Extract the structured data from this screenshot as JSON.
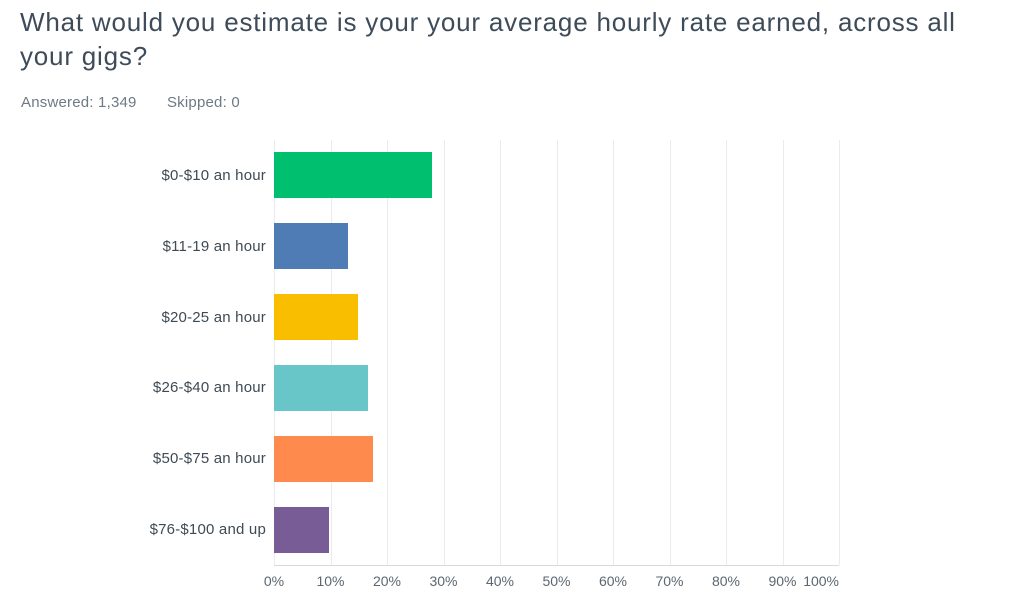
{
  "header": {
    "title": "What would you estimate is your your average hourly rate earned, across all your gigs?",
    "answered_label": "Answered:",
    "answered_value": "1,349",
    "skipped_label": "Skipped:",
    "skipped_value": "0"
  },
  "chart_data": {
    "type": "bar",
    "orientation": "horizontal",
    "title": "What would you estimate is your your average hourly rate earned, across all your gigs?",
    "categories": [
      "$0-$10 an hour",
      "$11-19 an hour",
      "$20-25 an hour",
      "$26-$40 an hour",
      "$50-$75 an hour",
      "$76-$100 and up"
    ],
    "values": [
      27.9,
      13.1,
      14.8,
      16.7,
      17.6,
      9.8
    ],
    "unit": "%",
    "bar_colors": [
      "#00BF6F",
      "#507CB6",
      "#F9BE00",
      "#68C5C8",
      "#FF8A4D",
      "#775C95"
    ],
    "xlim": [
      0,
      100
    ],
    "x_tick_values": [
      0,
      10,
      20,
      30,
      40,
      50,
      60,
      70,
      80,
      90,
      100
    ],
    "x_tick_labels": [
      "0%",
      "10%",
      "20%",
      "30%",
      "40%",
      "50%",
      "60%",
      "70%",
      "80%",
      "90%",
      "100%"
    ],
    "grid": true,
    "grid_axis": "x",
    "legend": false
  },
  "colors": {
    "title_text": "#3e4c59",
    "meta_text": "#6d7985",
    "label_text": "#3e4a54",
    "tick_text": "#5a6772",
    "grid_line": "#e9ebed",
    "axis_line": "#d6dade",
    "background": "#ffffff"
  }
}
